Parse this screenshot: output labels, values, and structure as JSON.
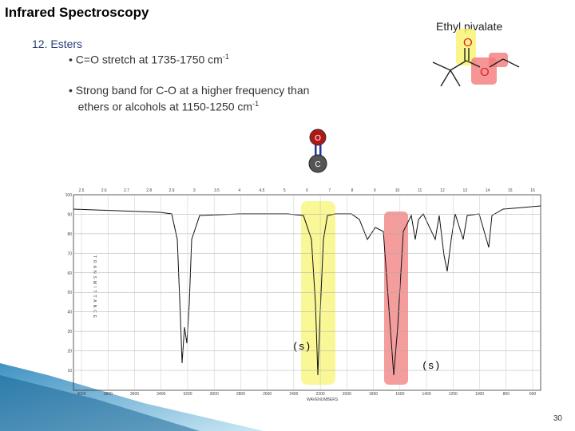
{
  "header": {
    "title": "Infrared Spectroscopy",
    "molecule_name": "Ethyl pivalate"
  },
  "section": "12.  Esters",
  "bullets": [
    {
      "text": "C=O stretch at 1735-1750 cm",
      "sup": "-1"
    },
    {
      "lines": [
        "Strong band for C-O at a higher frequency than",
        "ethers or  alcohols at 1150-1250 cm"
      ],
      "sup": "-1"
    }
  ],
  "molecule": {
    "atoms": [
      "O",
      "O"
    ],
    "ball_atoms": [
      "O",
      "C"
    ]
  },
  "spectrum": {
    "top_ticks": [
      "2.5",
      "2.6",
      "2.7",
      "2.8",
      "2.9",
      "3",
      "3.5",
      "4",
      "4.5",
      "5",
      "6",
      "7",
      "8",
      "9",
      "10",
      "11",
      "12",
      "13",
      "14",
      "15",
      "16"
    ],
    "y_ticks": [
      "100",
      "90",
      "80",
      "70",
      "60",
      "50",
      "40",
      "30",
      "20",
      "10"
    ],
    "x_ticks": [
      "4000",
      "3800",
      "3600",
      "3400",
      "3200",
      "3000",
      "2800",
      "2600",
      "2400",
      "2200",
      "2000",
      "1800",
      "1600",
      "1400",
      "1200",
      "1000",
      "800",
      "600"
    ],
    "y_label": "TRANSMITTANCE",
    "x_label": "WAVENUMBERS",
    "band_labels": [
      "(s)",
      "(s)"
    ]
  },
  "page_number": "30"
}
